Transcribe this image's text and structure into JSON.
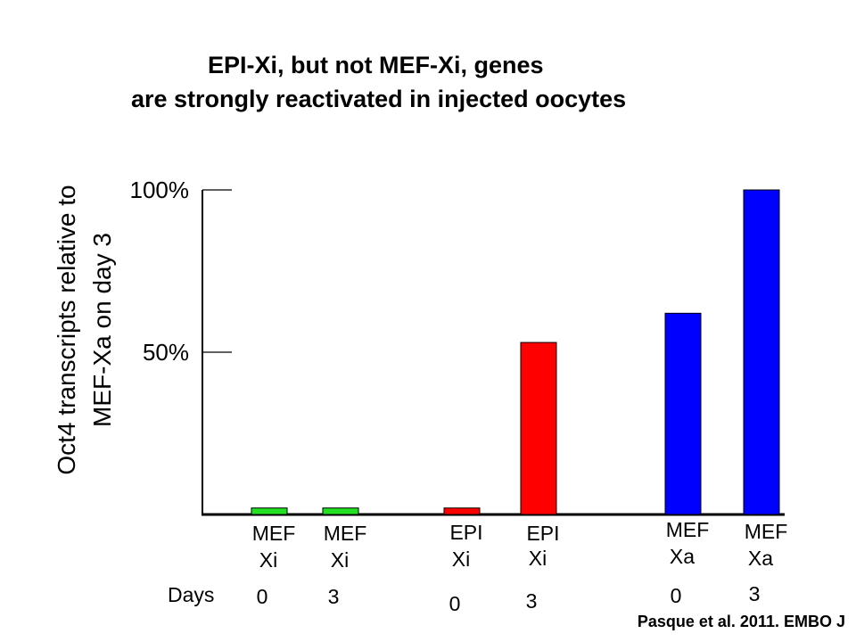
{
  "title": {
    "line1": "EPI-Xi, but not MEF-Xi, genes",
    "line2": "are strongly reactivated in injected oocytes"
  },
  "chart_data": {
    "type": "bar",
    "ylabel": [
      "Oct4 transcripts  relative to",
      "MEF-Xa on day 3"
    ],
    "ylim": [
      0,
      100
    ],
    "yticks": [
      {
        "value": 100,
        "label": "100%"
      },
      {
        "value": 50,
        "label": "50%"
      }
    ],
    "days_label": "Days",
    "bars": [
      {
        "line1": "MEF",
        "line2": "Xi",
        "day": "0",
        "value": 2,
        "color": "#22e022"
      },
      {
        "line1": "MEF",
        "line2": "Xi",
        "day": "3",
        "value": 2,
        "color": "#22e022"
      },
      {
        "line1": "EPI",
        "line2": "Xi",
        "day": "0",
        "value": 2,
        "color": "#ff0000"
      },
      {
        "line1": "EPI",
        "line2": "Xi",
        "day": "3",
        "value": 53,
        "color": "#ff0000"
      },
      {
        "line1": "MEF",
        "line2": "Xa",
        "day": "0",
        "value": 62,
        "color": "#0000ff"
      },
      {
        "line1": "MEF",
        "line2": "Xa",
        "day": "3",
        "value": 100,
        "color": "#0000ff"
      }
    ],
    "grid": false,
    "legend": "none"
  },
  "citation": "Pasque et al. 2011. EMBO J"
}
